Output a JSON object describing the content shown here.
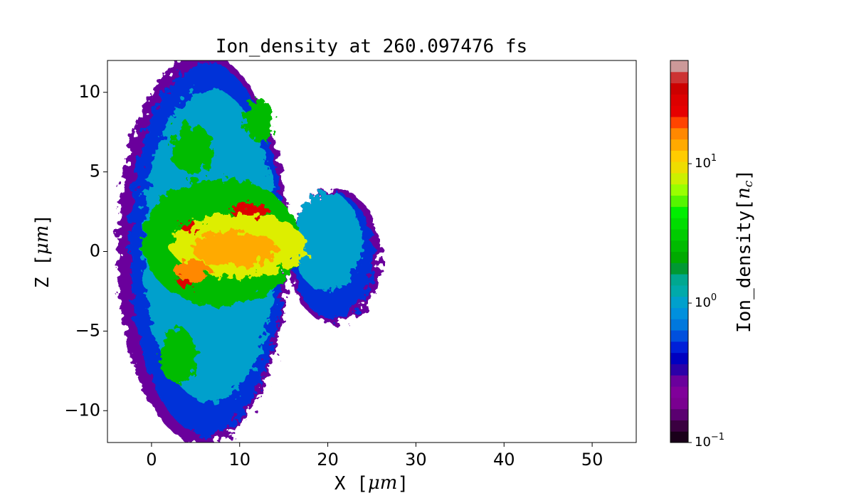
{
  "chart_data": {
    "type": "heatmap",
    "title": "Ion_density at 260.097476 fs",
    "x_label": [
      "X [",
      "μm",
      "]"
    ],
    "y_label": [
      "Z [",
      "μm",
      "]"
    ],
    "xlim": [
      -5,
      55
    ],
    "ylim": [
      -12,
      12
    ],
    "xticks": [
      0,
      10,
      20,
      30,
      40,
      50
    ],
    "yticks": [
      {
        "value": -10,
        "label": "−10"
      },
      {
        "value": -5,
        "label": "−5"
      },
      0,
      5,
      10
    ],
    "colorbar": {
      "label": [
        "Ion_density[",
        "n",
        "c",
        "]"
      ],
      "log_scale": true,
      "lim": [
        0.1,
        55
      ],
      "ticks": [
        {
          "value": 0.1,
          "label": "10",
          "exponent": "−1"
        },
        {
          "value": 1,
          "label": "10",
          "exponent": "0"
        },
        {
          "value": 10,
          "label": "10",
          "exponent": "1"
        }
      ],
      "colors": [
        "#1a001a",
        "#3a0040",
        "#5a0070",
        "#7a0090",
        "#80009a",
        "#6a009c",
        "#2b00a8",
        "#0000c0",
        "#0020d8",
        "#0050dd",
        "#0078dd",
        "#0090dd",
        "#00a0cc",
        "#00aaaa",
        "#00a890",
        "#009933",
        "#00aa00",
        "#00bb00",
        "#00cc00",
        "#00dd00",
        "#00ee00",
        "#55f500",
        "#99ff00",
        "#ccf000",
        "#eedd00",
        "#ffcc00",
        "#ffaa00",
        "#ff8800",
        "#ff4400",
        "#e60000",
        "#dd0000",
        "#cc0000",
        "#cc3333",
        "#cc9999"
      ]
    }
  }
}
